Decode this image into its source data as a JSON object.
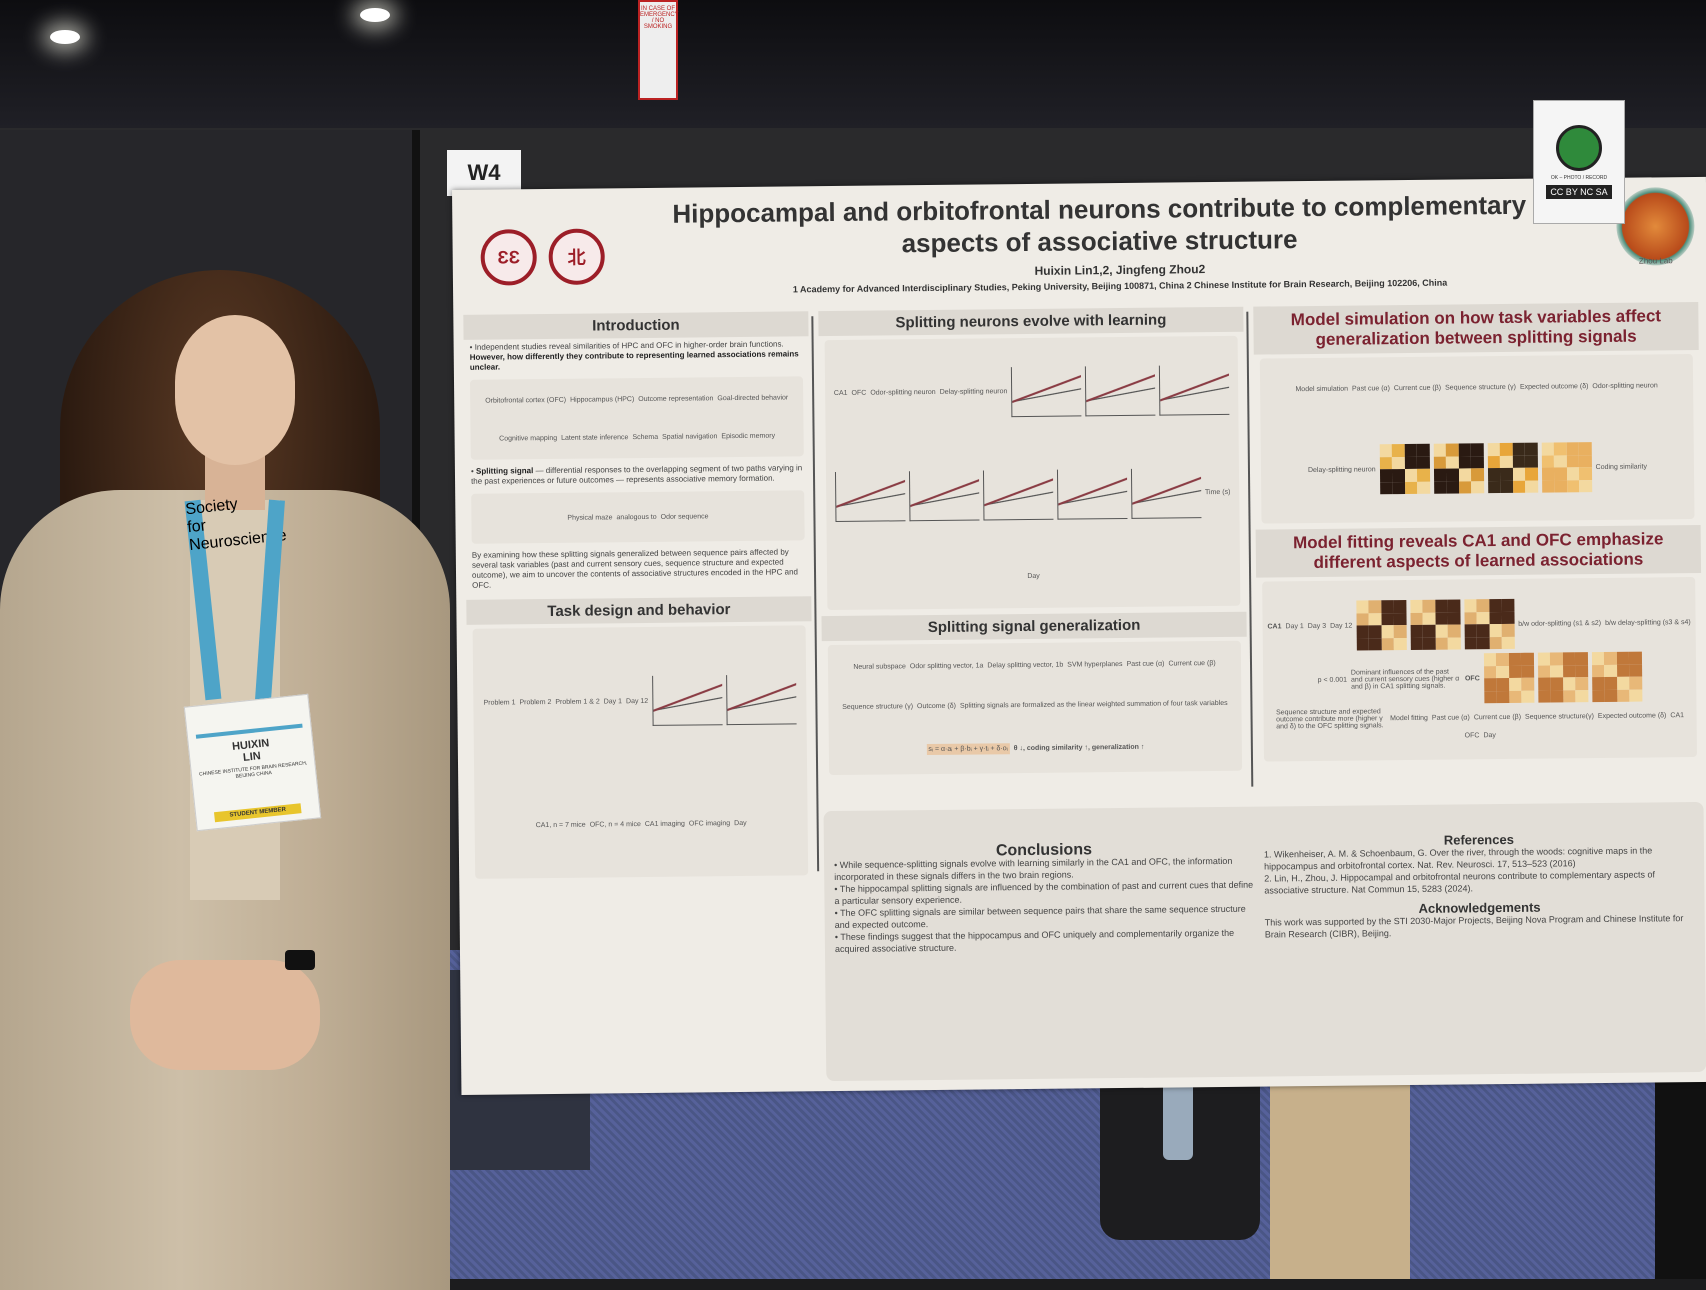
{
  "scene": {
    "booth_label": "W4",
    "sign_text": "IN CASE OF EMERGENCY / NO SMOKING",
    "cc_label": "OK – PHOTO / RECORD",
    "cc_badge": "CC BY NC SA",
    "lab_logo": "Zhou Lab",
    "colors": {
      "poster_accent": "#7b2230",
      "carpet": "#4a5686",
      "coat": "#c2b39b"
    }
  },
  "badge": {
    "first": "HUIXIN",
    "last": "LIN",
    "org": "CHINESE INSTITUTE FOR BRAIN RESEARCH, BEIJING CHINA",
    "type": "STUDENT MEMBER",
    "lanyard": "Society for Neuroscience"
  },
  "poster": {
    "title": "Hippocampal and orbitofrontal neurons contribute to complementary aspects of associative structure",
    "authors": "Huixin Lin1,2, Jingfeng Zhou2",
    "affiliations": "1 Academy for Advanced Interdisciplinary Studies, Peking University, Beijing 100871, China  2 Chinese Institute for Brain Research, Beijing 102206, China",
    "intro": {
      "heading": "Introduction",
      "p1": "Independent studies reveal similarities of HPC and OFC in higher-order brain functions.",
      "p1b": "However, how differently they contribute to representing learned associations remains unclear.",
      "fig_labels": [
        "Orbitofrontal cortex (OFC)",
        "Hippocampus (HPC)",
        "Outcome representation",
        "Goal-directed behavior",
        "Cognitive mapping",
        "Latent state inference",
        "Schema",
        "Spatial navigation",
        "Episodic memory"
      ],
      "p2a": "Splitting signal",
      "p2": "— differential responses to the overlapping segment of two paths varying in the past experiences or future outcomes — represents associative memory formation.",
      "fig2_labels": [
        "Physical maze",
        "analogous to",
        "Odor sequence"
      ],
      "p3": "By examining how these splitting signals generalized between sequence pairs affected by several task variables (past and current sensory cues, sequence structure and expected outcome), we aim to uncover the contents of associative structures encoded in the HPC and OFC."
    },
    "task": {
      "heading": "Task design and behavior",
      "labels": [
        "Problem 1",
        "Problem 2",
        "Problem 1 & 2",
        "Day 1",
        "Day 12",
        "CA1, n = 7 mice",
        "OFC, n = 4 mice",
        "CA1 imaging",
        "OFC imaging",
        "Day"
      ]
    },
    "splitting": {
      "heading": "Splitting neurons evolve with learning",
      "labels": [
        "CA1",
        "OFC",
        "Odor-splitting neuron",
        "Delay-splitting neuron",
        "Time (s)",
        "Day"
      ]
    },
    "generalization": {
      "heading": "Splitting signal generalization",
      "labels": [
        "Neural subspace",
        "Odor splitting vector, 1a",
        "Delay splitting vector, 1b",
        "SVM hyperplanes",
        "Past cue (α)",
        "Current cue (β)",
        "Sequence structure (γ)",
        "Outcome (δ)"
      ],
      "note": "Splitting signals are formalized as the linear weighted summation of four task variables",
      "formula": "sᵢ = α·aᵢ + β·bᵢ + γ·tᵢ + δ·oᵢ",
      "conclusion": "θ ↓, coding similarity ↑, generalization ↑"
    },
    "model_sim": {
      "heading": "Model simulation on how task variables affect generalization between splitting signals",
      "labels": [
        "Model simulation",
        "Past cue (α)",
        "Current cue (β)",
        "Sequence structure (γ)",
        "Expected outcome (δ)",
        "Odor-splitting neuron",
        "Delay-splitting neuron",
        "Coding similarity"
      ]
    },
    "model_fit": {
      "heading": "Model fitting reveals CA1 and OFC emphasize different aspects of learned associations",
      "regions": [
        "CA1",
        "OFC"
      ],
      "days": [
        "Day 1",
        "Day 3",
        "Day 12"
      ],
      "legend": [
        "b/w odor-splitting (s1 & s2)",
        "b/w delay-splitting (s3 & s4)",
        "p < 0.001"
      ],
      "bullets": [
        "Dominant influences of the past and current sensory cues (higher α and β) in CA1 splitting signals.",
        "Sequence structure and expected outcome contribute more (higher γ and δ) to the OFC splitting signals."
      ],
      "fit_labels": [
        "Model fitting",
        "Past cue (α)",
        "Current cue (β)",
        "Sequence structure(γ)",
        "Expected outcome (δ)",
        "CA1",
        "OFC",
        "Day"
      ]
    },
    "conclusions": {
      "heading": "Conclusions",
      "items": [
        "While sequence-splitting signals evolve with learning similarly in the CA1 and OFC, the information incorporated in these signals differs in the two brain regions.",
        "The hippocampal splitting signals are influenced by the combination of past and current cues that define a particular sensory experience.",
        "The OFC splitting signals are similar between sequence pairs that share the same sequence structure and expected outcome.",
        "These findings suggest that the hippocampus and OFC uniquely and complementarily organize the acquired associative structure."
      ]
    },
    "references": {
      "heading": "References",
      "items": [
        "1. Wikenheiser, A. M. & Schoenbaum, G. Over the river, through the woods: cognitive maps in the hippocampus and orbitofrontal cortex. Nat. Rev. Neurosci. 17, 513–523 (2016)",
        "2. Lin, H., Zhou, J. Hippocampal and orbitofrontal neurons contribute to complementary aspects of associative structure. Nat Commun 15, 5283 (2024)."
      ]
    },
    "ack": {
      "heading": "Acknowledgements",
      "text": "This work was supported by the STI 2030-Major Projects, Beijing Nova Program and Chinese Institute for Brain Research (CIBR), Beijing."
    }
  }
}
